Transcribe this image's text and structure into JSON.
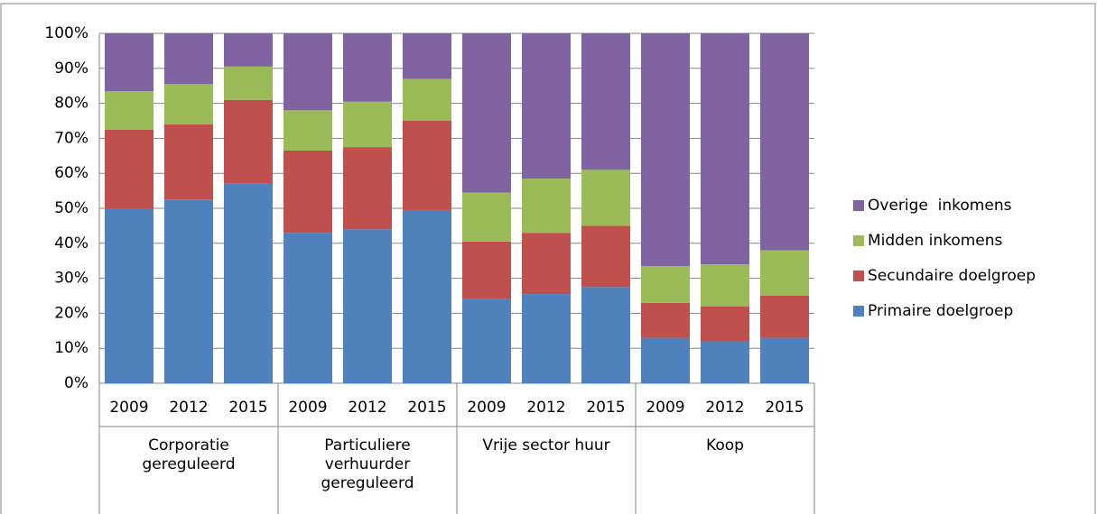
{
  "chart_data": {
    "type": "stacked_bar",
    "categories": [
      "2009",
      "2012",
      "2015",
      "2009",
      "2012",
      "2015",
      "2009",
      "2012",
      "2015",
      "2009",
      "2012",
      "2015"
    ],
    "groups": [
      "Corporatie gereguleerd",
      "Particuliere verhuurder gereguleerd",
      "Vrije sector huur",
      "Koop"
    ],
    "series": [
      {
        "name": "Primaire doelgroep",
        "color": "#4f81bd",
        "values": [
          50,
          52.5,
          57,
          43,
          44,
          49.5,
          24,
          25.5,
          27.5,
          13,
          12,
          13
        ]
      },
      {
        "name": "Secundaire doelgroep",
        "color": "#c0504d",
        "values": [
          22.5,
          21.5,
          24,
          23.5,
          23.5,
          25.5,
          16.5,
          17.5,
          17.5,
          10,
          10,
          12
        ]
      },
      {
        "name": "Midden inkomens",
        "color": "#9bbb59",
        "values": [
          11,
          11.5,
          9.5,
          11.5,
          13,
          12,
          14,
          15.5,
          16,
          10.5,
          12,
          13
        ]
      },
      {
        "name": "Overige  inkomens",
        "color": "#8064a2",
        "values": [
          16.5,
          14.5,
          9.5,
          22,
          19.5,
          13,
          45.5,
          41.5,
          39,
          66.5,
          66,
          62
        ]
      }
    ],
    "ylim": [
      0,
      100
    ],
    "yticks": [
      {
        "value": 0,
        "label": "0%"
      },
      {
        "value": 10,
        "label": "10%"
      },
      {
        "value": 20,
        "label": "20%"
      },
      {
        "value": 30,
        "label": "30%"
      },
      {
        "value": 40,
        "label": "40%"
      },
      {
        "value": 50,
        "label": "50%"
      },
      {
        "value": 60,
        "label": "60%"
      },
      {
        "value": 70,
        "label": "70%"
      },
      {
        "value": 80,
        "label": "80%"
      },
      {
        "value": 90,
        "label": "90%"
      },
      {
        "value": 100,
        "label": "100%"
      }
    ],
    "grid": true,
    "legend": "right"
  }
}
